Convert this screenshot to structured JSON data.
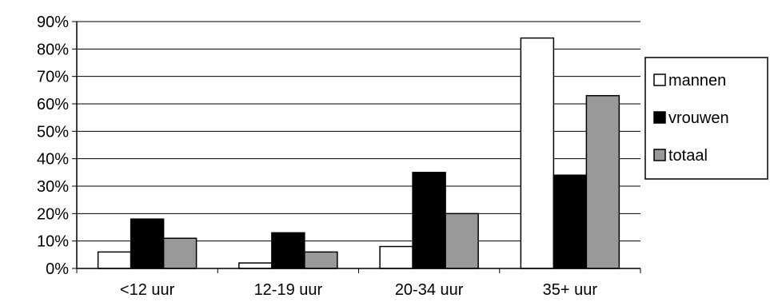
{
  "chart_data": {
    "type": "bar",
    "categories": [
      "<12 uur",
      "12-19 uur",
      "20-34 uur",
      "35+ uur"
    ],
    "series": [
      {
        "name": "mannen",
        "values": [
          6,
          2,
          8,
          84
        ],
        "color": "#ffffff"
      },
      {
        "name": "vrouwen",
        "values": [
          18,
          13,
          35,
          34
        ],
        "color": "#000000"
      },
      {
        "name": "totaal",
        "values": [
          11,
          6,
          20,
          63
        ],
        "color": "#999999"
      }
    ],
    "y_ticks": [
      "0%",
      "10%",
      "20%",
      "30%",
      "40%",
      "50%",
      "60%",
      "70%",
      "80%",
      "90%"
    ],
    "ylim": [
      0,
      90
    ],
    "unit": "%",
    "grid": true,
    "legend_position": "right"
  }
}
